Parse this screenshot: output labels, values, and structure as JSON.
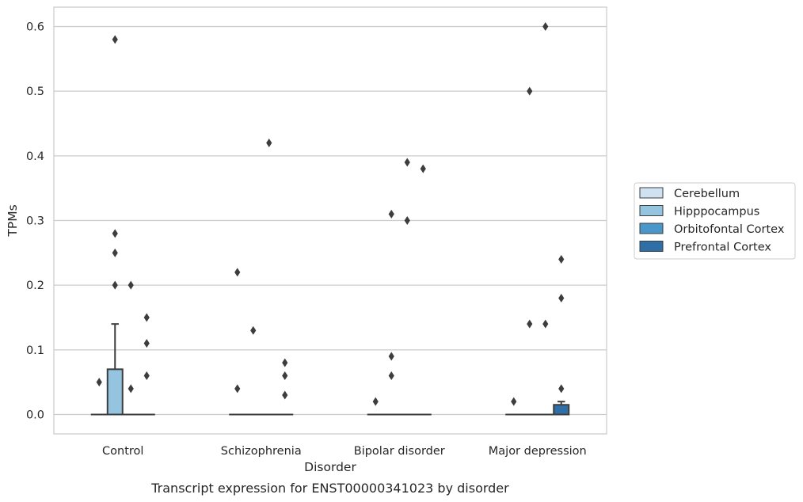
{
  "chart_data": {
    "type": "box",
    "caption": "Transcript expression for ENST00000341023 by disorder",
    "xlabel": "Disorder",
    "ylabel": "TPMs",
    "ylim": [
      -0.03,
      0.63
    ],
    "yticks": [
      "0.0",
      "0.1",
      "0.2",
      "0.3",
      "0.4",
      "0.5",
      "0.6"
    ],
    "ytick_values": [
      0,
      0.1,
      0.2,
      0.3,
      0.4,
      0.5,
      0.6
    ],
    "grid": true,
    "legend_position": "right",
    "categories": [
      "Control",
      "Schizophrenia",
      "Bipolar disorder",
      "Major depression"
    ],
    "series": [
      {
        "name": "Cerebellum",
        "color": "#d0e1f2",
        "boxes": [
          {
            "q1": 0,
            "median": 0,
            "q3": 0,
            "whisker_low": 0,
            "whisker_high": 0,
            "outliers": [
              0.05
            ]
          },
          {
            "q1": 0,
            "median": 0,
            "q3": 0,
            "whisker_low": 0,
            "whisker_high": 0,
            "outliers": [
              0.22,
              0.04
            ]
          },
          {
            "q1": 0,
            "median": 0,
            "q3": 0,
            "whisker_low": 0,
            "whisker_high": 0,
            "outliers": [
              0.02
            ]
          },
          {
            "q1": 0,
            "median": 0,
            "q3": 0,
            "whisker_low": 0,
            "whisker_high": 0,
            "outliers": [
              0.02
            ]
          }
        ]
      },
      {
        "name": "Hipppocampus",
        "color": "#94c4df",
        "boxes": [
          {
            "q1": 0,
            "median": 0,
            "q3": 0.07,
            "whisker_low": 0,
            "whisker_high": 0.14,
            "outliers": [
              0.58,
              0.28,
              0.25,
              0.2
            ]
          },
          {
            "q1": 0,
            "median": 0,
            "q3": 0,
            "whisker_low": 0,
            "whisker_high": 0,
            "outliers": [
              0.13
            ]
          },
          {
            "q1": 0,
            "median": 0,
            "q3": 0,
            "whisker_low": 0,
            "whisker_high": 0,
            "outliers": [
              0.31,
              0.09,
              0.06
            ]
          },
          {
            "q1": 0,
            "median": 0,
            "q3": 0,
            "whisker_low": 0,
            "whisker_high": 0,
            "outliers": [
              0.5,
              0.14
            ]
          }
        ]
      },
      {
        "name": "Orbitofontal Cortex",
        "color": "#4a98c9",
        "boxes": [
          {
            "q1": 0,
            "median": 0,
            "q3": 0,
            "whisker_low": 0,
            "whisker_high": 0,
            "outliers": [
              0.2,
              0.04
            ]
          },
          {
            "q1": 0,
            "median": 0,
            "q3": 0,
            "whisker_low": 0,
            "whisker_high": 0,
            "outliers": [
              0.42
            ]
          },
          {
            "q1": 0,
            "median": 0,
            "q3": 0,
            "whisker_low": 0,
            "whisker_high": 0,
            "outliers": [
              0.39,
              0.3
            ]
          },
          {
            "q1": 0,
            "median": 0,
            "q3": 0,
            "whisker_low": 0,
            "whisker_high": 0,
            "outliers": [
              0.6,
              0.14
            ]
          }
        ]
      },
      {
        "name": "Prefrontal Cortex",
        "color": "#2e6fa8",
        "boxes": [
          {
            "q1": 0,
            "median": 0,
            "q3": 0,
            "whisker_low": 0,
            "whisker_high": 0,
            "outliers": [
              0.15,
              0.11,
              0.06
            ]
          },
          {
            "q1": 0,
            "median": 0,
            "q3": 0,
            "whisker_low": 0,
            "whisker_high": 0,
            "outliers": [
              0.08,
              0.06,
              0.03
            ]
          },
          {
            "q1": 0,
            "median": 0,
            "q3": 0,
            "whisker_low": 0,
            "whisker_high": 0,
            "outliers": [
              0.38
            ]
          },
          {
            "q1": 0,
            "median": 0,
            "q3": 0.015,
            "whisker_low": 0,
            "whisker_high": 0.02,
            "outliers": [
              0.24,
              0.18,
              0.04
            ]
          }
        ]
      }
    ]
  }
}
